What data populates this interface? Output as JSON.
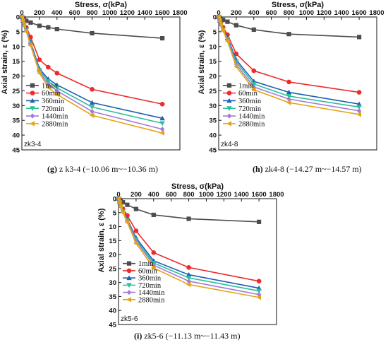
{
  "chart_data": [
    {
      "type": "line",
      "panel_label": "zk3-4",
      "caption_letter": "(g)",
      "caption_text": " z k3-4 (−10.06 m~−10.36 m)",
      "xlabel": "Stress, σ(kPa)",
      "ylabel": "Axial strain, ε (%)",
      "xlim": [
        0,
        1800
      ],
      "ylim": [
        0,
        45
      ],
      "y_reversed": true,
      "x_axis_position": "top",
      "xticks": [
        0,
        200,
        400,
        600,
        800,
        1000,
        1200,
        1400,
        1600,
        1800
      ],
      "yticks": [
        0,
        5,
        10,
        15,
        20,
        25,
        30,
        35,
        40,
        45
      ],
      "legend_position": "bottom-left",
      "x": [
        0,
        12.5,
        25,
        50,
        100,
        200,
        300,
        400,
        800,
        1600
      ],
      "series": [
        {
          "name": "1min",
          "values": [
            0,
            0.4,
            0.8,
            1.3,
            1.9,
            3.0,
            3.5,
            4.1,
            5.5,
            7.2
          ]
        },
        {
          "name": "60min",
          "values": [
            0,
            1.0,
            2.0,
            3.5,
            6.8,
            14.5,
            17.0,
            19.0,
            24.5,
            29.5
          ]
        },
        {
          "name": "360min",
          "values": [
            0,
            1.2,
            2.5,
            4.3,
            8.5,
            17.5,
            21.0,
            23.0,
            29.0,
            34.3
          ]
        },
        {
          "name": "720min",
          "values": [
            0,
            1.3,
            2.6,
            4.5,
            9.0,
            18.0,
            21.8,
            24.0,
            30.5,
            36.0
          ]
        },
        {
          "name": "1440min",
          "values": [
            0,
            1.3,
            2.7,
            4.7,
            9.3,
            18.5,
            22.8,
            25.0,
            32.0,
            38.0
          ]
        },
        {
          "name": "2880min",
          "values": [
            0,
            1.4,
            2.8,
            4.9,
            9.7,
            19.0,
            23.8,
            26.2,
            33.3,
            39.3
          ]
        }
      ]
    },
    {
      "type": "line",
      "panel_label": "zk4-8",
      "caption_letter": "(h)",
      "caption_text": " zk4-8 (−14.27 m~−14.57 m)",
      "xlabel": "Stress, σ(kPa)",
      "ylabel": "Axial strain, ε (%)",
      "xlim": [
        0,
        1800
      ],
      "ylim": [
        0,
        45
      ],
      "y_reversed": true,
      "x_axis_position": "top",
      "xticks": [
        0,
        200,
        400,
        600,
        800,
        1000,
        1200,
        1400,
        1600,
        1800
      ],
      "yticks": [
        0,
        5,
        10,
        15,
        20,
        25,
        30,
        35,
        40,
        45
      ],
      "legend_position": "bottom-left",
      "x": [
        0,
        12.5,
        25,
        50,
        100,
        200,
        400,
        800,
        1600
      ],
      "series": [
        {
          "name": "1min",
          "values": [
            0,
            0.3,
            0.6,
            1.0,
            1.6,
            2.8,
            4.3,
            5.8,
            6.8
          ]
        },
        {
          "name": "60min",
          "values": [
            0,
            1.0,
            2.0,
            3.5,
            6.0,
            12.5,
            18.2,
            22.0,
            25.5
          ]
        },
        {
          "name": "360min",
          "values": [
            0,
            1.2,
            2.4,
            4.0,
            7.0,
            14.5,
            21.8,
            25.5,
            29.5
          ]
        },
        {
          "name": "720min",
          "values": [
            0,
            1.2,
            2.5,
            4.2,
            7.4,
            15.2,
            22.7,
            26.8,
            30.5
          ]
        },
        {
          "name": "1440min",
          "values": [
            0,
            1.3,
            2.6,
            4.4,
            7.8,
            16.0,
            23.7,
            27.8,
            31.8
          ]
        },
        {
          "name": "2880min",
          "values": [
            0,
            1.4,
            2.7,
            4.6,
            8.2,
            16.8,
            24.6,
            29.0,
            33.0
          ]
        }
      ]
    },
    {
      "type": "line",
      "panel_label": "zk5-6",
      "caption_letter": "(i)",
      "caption_text": " zk5-6 (−11.13 m~−11.43 m)",
      "xlabel": "Stress, σ(kPa)",
      "ylabel": "Axial strain, ε (%)",
      "xlim": [
        0,
        1800
      ],
      "ylim": [
        0,
        45
      ],
      "y_reversed": true,
      "x_axis_position": "top",
      "xticks": [
        0,
        200,
        400,
        600,
        800,
        1000,
        1200,
        1400,
        1600,
        1800
      ],
      "yticks": [
        0,
        5,
        10,
        15,
        20,
        25,
        30,
        35,
        40,
        45
      ],
      "legend_position": "bottom-left",
      "x": [
        0,
        12.5,
        25,
        50,
        100,
        200,
        400,
        800,
        1600
      ],
      "series": [
        {
          "name": "1min",
          "values": [
            0,
            0.4,
            0.8,
            1.3,
            2.2,
            3.7,
            5.8,
            7.2,
            8.3
          ]
        },
        {
          "name": "60min",
          "values": [
            0,
            1.0,
            2.0,
            3.6,
            6.0,
            11.5,
            19.3,
            24.6,
            29.5
          ]
        },
        {
          "name": "360min",
          "values": [
            0,
            1.2,
            2.5,
            4.3,
            7.3,
            14.0,
            22.2,
            27.2,
            32.0
          ]
        },
        {
          "name": "720min",
          "values": [
            0,
            1.3,
            2.6,
            4.5,
            7.7,
            14.6,
            23.0,
            28.3,
            33.0
          ]
        },
        {
          "name": "1440min",
          "values": [
            0,
            1.4,
            2.7,
            4.7,
            8.0,
            15.2,
            23.8,
            29.5,
            34.3
          ]
        },
        {
          "name": "2880min",
          "values": [
            0,
            1.5,
            2.9,
            5.0,
            8.5,
            16.0,
            24.8,
            30.7,
            35.3
          ]
        }
      ]
    }
  ],
  "series_style": [
    {
      "name": "1min",
      "color": "#4d4d4d",
      "marker": "square"
    },
    {
      "name": "60min",
      "color": "#ee2a2a",
      "marker": "circle"
    },
    {
      "name": "360min",
      "color": "#1f5fb4",
      "marker": "triangle-up"
    },
    {
      "name": "720min",
      "color": "#2bbf9a",
      "marker": "triangle-down"
    },
    {
      "name": "1440min",
      "color": "#a27bd6",
      "marker": "diamond"
    },
    {
      "name": "2880min",
      "color": "#e4a514",
      "marker": "triangle-left"
    }
  ]
}
